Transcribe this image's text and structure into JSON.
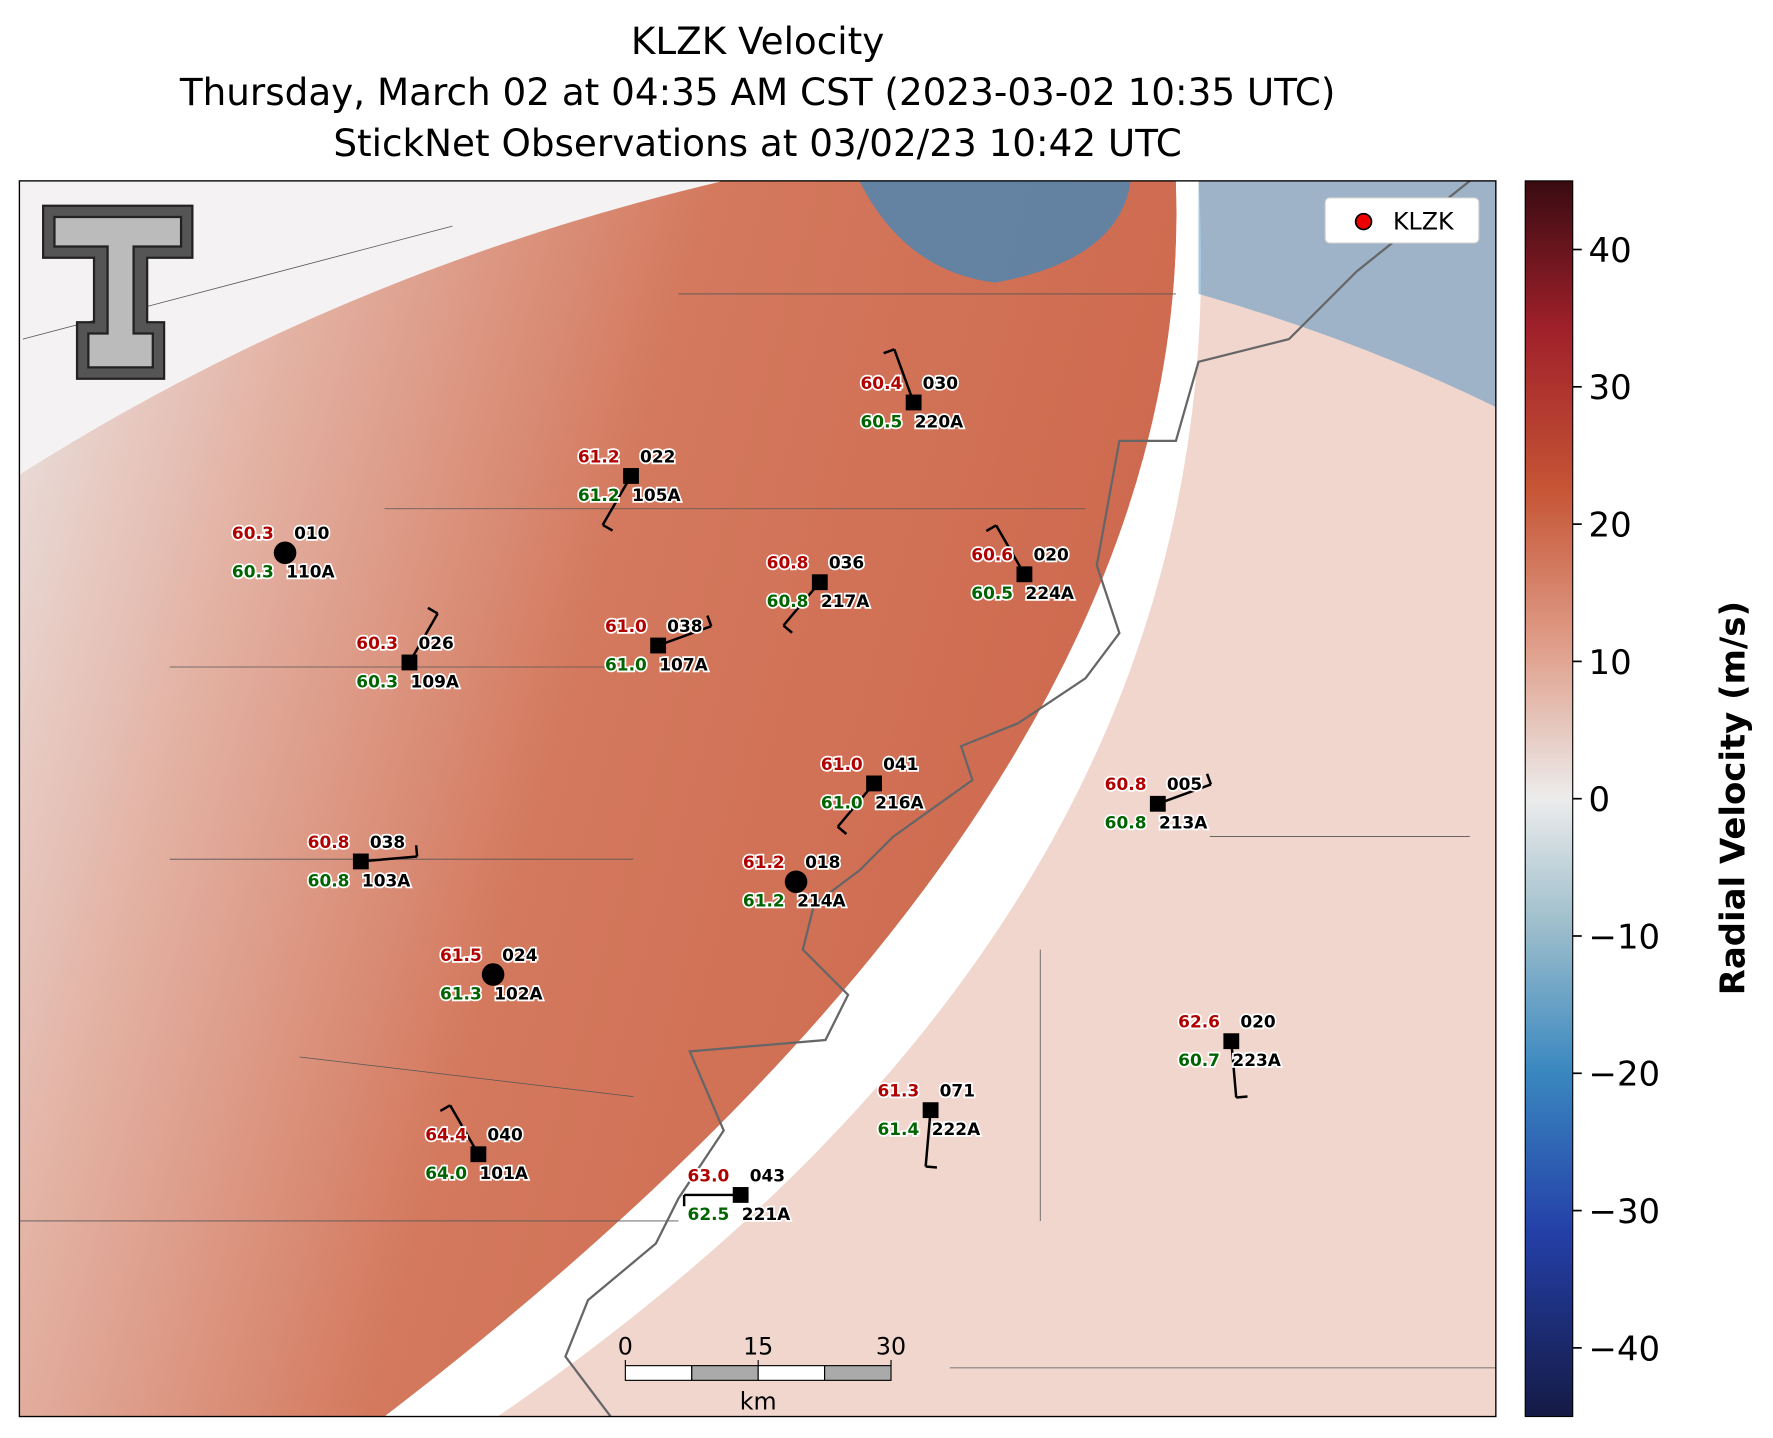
{
  "title": [
    "KLZK Velocity",
    "Thursday, March 02 at 04:35 AM CST (2023-03-02 10:35 UTC)",
    "StickNet Observations at 03/02/23 10:42 UTC"
  ],
  "legend": "KLZK",
  "stations": [
    {
      "temp": "60.3",
      "dewpoint": "60.3",
      "code": "010",
      "id": "110A"
    },
    {
      "temp": "61.2",
      "dewpoint": "61.2",
      "code": "022",
      "id": "105A"
    },
    {
      "temp": "60.4",
      "dewpoint": "60.5",
      "code": "030",
      "id": "220A"
    },
    {
      "temp": "60.8",
      "dewpoint": "60.8",
      "code": "036",
      "id": "217A"
    },
    {
      "temp": "60.6",
      "dewpoint": "60.5",
      "code": "020",
      "id": "224A"
    },
    {
      "temp": "60.3",
      "dewpoint": "60.3",
      "code": "026",
      "id": "109A"
    },
    {
      "temp": "61.0",
      "dewpoint": "61.0",
      "code": "038",
      "id": "107A"
    },
    {
      "temp": "61.0",
      "dewpoint": "61.0",
      "code": "041",
      "id": "216A"
    },
    {
      "temp": "60.8",
      "dewpoint": "60.8",
      "code": "005",
      "id": "213A"
    },
    {
      "temp": "60.8",
      "dewpoint": "60.8",
      "code": "038",
      "id": "103A"
    },
    {
      "temp": "61.2",
      "dewpoint": "61.2",
      "code": "018",
      "id": "214A"
    },
    {
      "temp": "61.5",
      "dewpoint": "61.3",
      "code": "024",
      "id": "102A"
    },
    {
      "temp": "62.6",
      "dewpoint": "60.7",
      "code": "020",
      "id": "223A"
    },
    {
      "temp": "61.3",
      "dewpoint": "61.4",
      "code": "071",
      "id": "222A"
    },
    {
      "temp": "64.4",
      "dewpoint": "64.0",
      "code": "040",
      "id": "101A"
    },
    {
      "temp": "63.0",
      "dewpoint": "62.5",
      "code": "043",
      "id": "221A"
    }
  ],
  "scalebar": {
    "ticks": [
      0,
      15,
      30
    ],
    "unit": "km"
  },
  "colorbar": {
    "label": "Radial Velocity (m/s)",
    "lim": [
      -45,
      45
    ],
    "ticks": [
      {
        "value": -40,
        "label": "−40"
      },
      {
        "value": -30,
        "label": "−30"
      },
      {
        "value": -20,
        "label": "−20"
      },
      {
        "value": -10,
        "label": "−10"
      },
      0,
      10,
      20,
      30,
      40
    ]
  }
}
